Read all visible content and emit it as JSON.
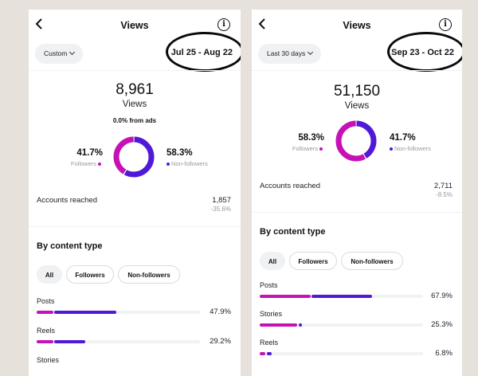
{
  "colors": {
    "followers": "#c511b6",
    "non_followers": "#5019d8",
    "track": "#f1f2f4"
  },
  "panels": [
    {
      "header": {
        "back_icon": "chevron-left-icon",
        "title": "Views",
        "info_icon": "info-icon"
      },
      "range_button": "Custom",
      "date_range": "Jul 25 - Aug 22",
      "views": {
        "value": "8,961",
        "label": "Views",
        "ads": "0.0% from ads"
      },
      "split": {
        "followers": {
          "pct": "41.7%",
          "label": "Followers",
          "fraction": 0.417
        },
        "non_followers": {
          "pct": "58.3%",
          "label": "Non-followers",
          "fraction": 0.583
        }
      },
      "accounts_reached": {
        "label": "Accounts reached",
        "value": "1,857",
        "change": "-35.6%"
      },
      "content_type": {
        "title": "By content type",
        "filters": [
          "All",
          "Followers",
          "Non-followers"
        ],
        "active_filter": "All",
        "rows": [
          {
            "label": "Posts",
            "pct": "47.9%",
            "followers_share": 0.1,
            "non_followers_share": 0.379
          },
          {
            "label": "Reels",
            "pct": "29.2%",
            "followers_share": 0.1,
            "non_followers_share": 0.192
          },
          {
            "label": "Stories",
            "pct": "",
            "followers_share": 0,
            "non_followers_share": 0
          }
        ]
      }
    },
    {
      "header": {
        "back_icon": "chevron-left-icon",
        "title": "Views",
        "info_icon": "info-icon"
      },
      "range_button": "Last 30 days",
      "date_range": "Sep 23 - Oct 22",
      "views": {
        "value": "51,150",
        "label": "Views",
        "ads": ""
      },
      "split": {
        "followers": {
          "pct": "58.3%",
          "label": "Followers",
          "fraction": 0.583
        },
        "non_followers": {
          "pct": "41.7%",
          "label": "Non-followers",
          "fraction": 0.417
        }
      },
      "accounts_reached": {
        "label": "Accounts reached",
        "value": "2,711",
        "change": "-8.5%"
      },
      "content_type": {
        "title": "By content type",
        "filters": [
          "All",
          "Followers",
          "Non-followers"
        ],
        "active_filter": "All",
        "rows": [
          {
            "label": "Posts",
            "pct": "67.9%",
            "followers_share": 0.31,
            "non_followers_share": 0.369
          },
          {
            "label": "Stories",
            "pct": "25.3%",
            "followers_share": 0.23,
            "non_followers_share": 0.023
          },
          {
            "label": "Reels",
            "pct": "6.8%",
            "followers_share": 0.035,
            "non_followers_share": 0.033
          }
        ]
      }
    }
  ]
}
